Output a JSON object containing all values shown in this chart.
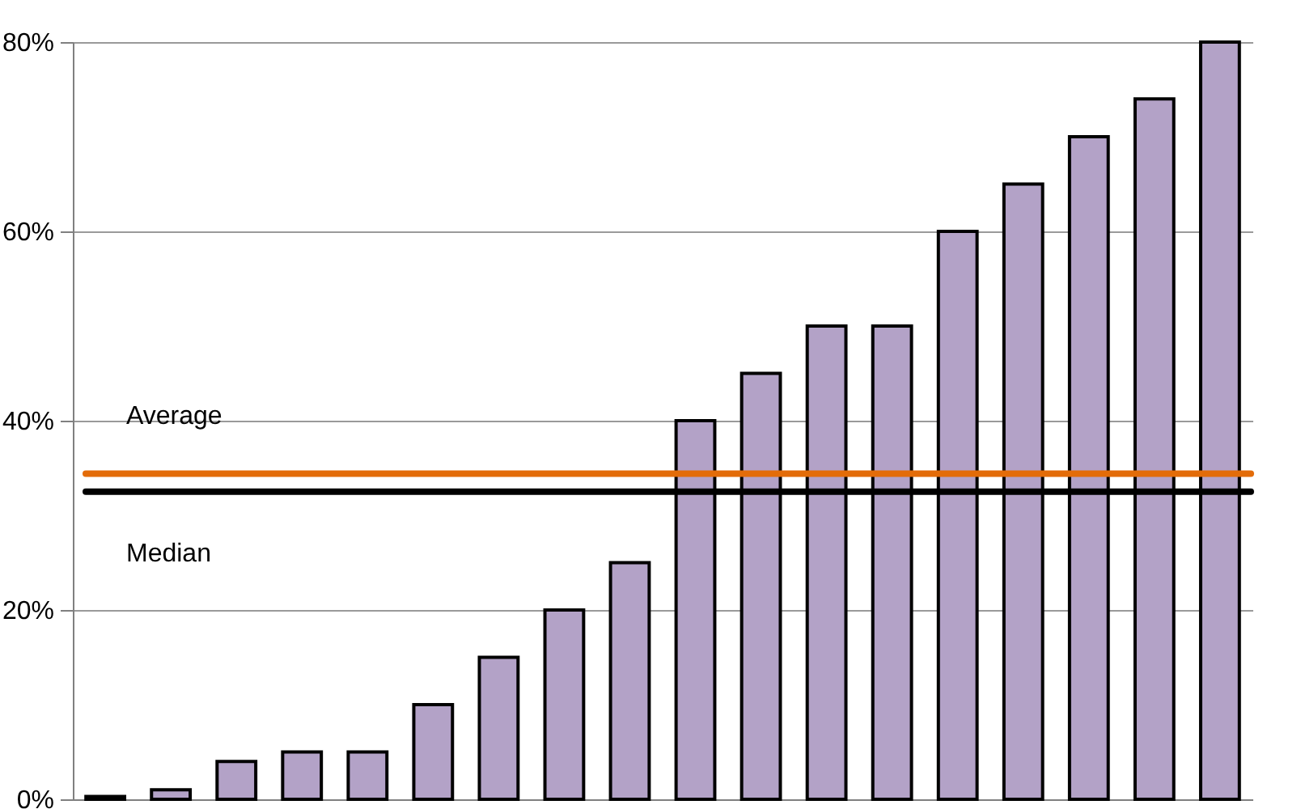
{
  "chart_data": {
    "type": "bar",
    "categories": [
      null,
      null,
      null,
      null,
      null,
      null,
      null,
      null,
      null,
      null,
      null,
      null,
      null,
      null,
      null,
      null,
      null,
      null
    ],
    "series": [
      {
        "color": "#b3a2c7",
        "values": [
          0.3,
          1,
          4,
          5,
          5,
          10,
          15,
          20,
          25,
          40,
          45,
          50,
          50,
          60,
          65,
          70,
          74,
          80
        ]
      }
    ],
    "ylim": [
      0,
      80
    ],
    "yticks": [
      {
        "value": 0,
        "label": "0%"
      },
      {
        "value": 20,
        "label": "20%"
      },
      {
        "value": 40,
        "label": "40%"
      },
      {
        "value": 60,
        "label": "60%"
      },
      {
        "value": 80,
        "label": "80%"
      }
    ],
    "grid": "y",
    "ref_lines": [
      {
        "axis": "y",
        "value": 34.4,
        "label": "Average",
        "color": "#e36c09"
      },
      {
        "axis": "y",
        "value": 32.5,
        "label": "Median",
        "color": "#000000"
      }
    ]
  }
}
